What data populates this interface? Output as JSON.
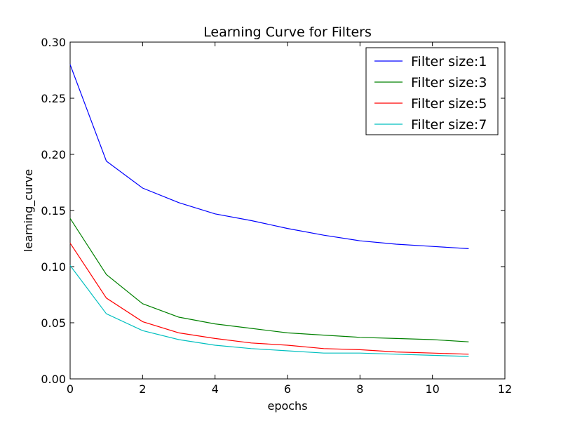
{
  "chart_data": {
    "type": "line",
    "title": "Learning Curve for Filters",
    "xlabel": "epochs",
    "ylabel": "learning_curve",
    "xlim": [
      0,
      12
    ],
    "ylim": [
      0.0,
      0.3
    ],
    "xticks": [
      0,
      2,
      4,
      6,
      8,
      10,
      12
    ],
    "xtick_labels": [
      "0",
      "2",
      "4",
      "6",
      "8",
      "10",
      "12"
    ],
    "yticks": [
      0.0,
      0.05,
      0.1,
      0.15,
      0.2,
      0.25,
      0.3
    ],
    "ytick_labels": [
      "0.00",
      "0.05",
      "0.10",
      "0.15",
      "0.20",
      "0.25",
      "0.30"
    ],
    "grid": false,
    "legend_position": "top-right",
    "x": [
      0,
      1,
      2,
      3,
      4,
      5,
      6,
      7,
      8,
      9,
      10,
      11
    ],
    "series": [
      {
        "name": "Filter size:1",
        "color": "#0000ff",
        "values": [
          0.28,
          0.194,
          0.17,
          0.157,
          0.147,
          0.141,
          0.134,
          0.128,
          0.123,
          0.12,
          0.118,
          0.116
        ]
      },
      {
        "name": "Filter size:3",
        "color": "#008000",
        "values": [
          0.143,
          0.093,
          0.067,
          0.055,
          0.049,
          0.045,
          0.041,
          0.039,
          0.037,
          0.036,
          0.035,
          0.033
        ]
      },
      {
        "name": "Filter size:5",
        "color": "#ff0000",
        "values": [
          0.121,
          0.072,
          0.051,
          0.041,
          0.036,
          0.032,
          0.03,
          0.027,
          0.026,
          0.024,
          0.023,
          0.022
        ]
      },
      {
        "name": "Filter size:7",
        "color": "#00bfbf",
        "values": [
          0.101,
          0.058,
          0.043,
          0.035,
          0.03,
          0.027,
          0.025,
          0.023,
          0.023,
          0.022,
          0.021,
          0.02
        ]
      }
    ]
  }
}
